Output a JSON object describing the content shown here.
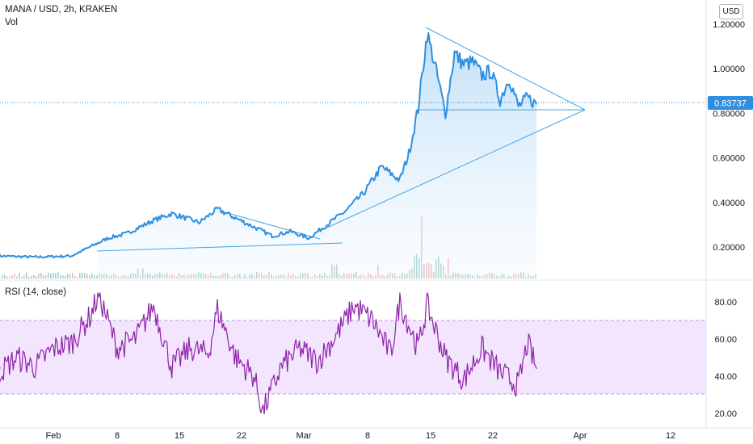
{
  "header": {
    "symbol_line": "MANA / USD, 2h, KRAKEN",
    "volume_label": "Vol",
    "currency_button": "USD"
  },
  "rsi": {
    "label": "RSI (14, close)"
  },
  "last_price": "0.83737",
  "colors": {
    "price_line": "#2e8fe0",
    "price_fill_top": "#bcdcf6",
    "trendline": "#42a5e6",
    "rsi_line": "#8e24aa",
    "rsi_band": "#f3e5fd",
    "vol_up": "#9fd2cc",
    "vol_down": "#f3b8b5",
    "last_price_badge": "#2e8fe0"
  },
  "chart_data": [
    {
      "type": "line",
      "title": "MANA / USD, 2h, KRAKEN",
      "x_tick_labels": [
        "Feb",
        "8",
        "15",
        "22",
        "Mar",
        "8",
        "15",
        "22",
        "Apr",
        "12"
      ],
      "y_tick_labels": [
        "1.20000",
        "1.00000",
        "0.80000",
        "0.60000",
        "0.40000",
        "0.20000"
      ],
      "ylim": [
        0.04,
        1.25
      ],
      "series": [
        {
          "values_description_free": true,
          "x": [
            "Jan 26",
            "Jan 30",
            "Feb 3",
            "Feb 5",
            "Feb 7",
            "Feb 9",
            "Feb 12",
            "Feb 14",
            "Feb 17",
            "Feb 19",
            "Feb 21",
            "Feb 23",
            "Feb 25",
            "Feb 27",
            "Mar 1",
            "Mar 3",
            "Mar 5",
            "Mar 7",
            "Mar 9",
            "Mar 11",
            "Mar 12",
            "Mar 13",
            "Mar 14",
            "Mar 15",
            "Mar 16",
            "Mar 17",
            "Mar 18",
            "Mar 19",
            "Mar 20",
            "Mar 21",
            "Mar 22",
            "Mar 23",
            "Mar 24",
            "Mar 25",
            "Mar 26"
          ],
          "y": [
            0.16,
            0.155,
            0.16,
            0.2,
            0.24,
            0.26,
            0.32,
            0.35,
            0.31,
            0.37,
            0.33,
            0.29,
            0.25,
            0.27,
            0.24,
            0.3,
            0.36,
            0.44,
            0.56,
            0.5,
            0.62,
            0.82,
            1.16,
            0.99,
            0.8,
            1.07,
            1.02,
            1.03,
            0.97,
            0.99,
            0.86,
            0.96,
            0.83,
            0.87,
            0.84
          ]
        }
      ],
      "last_value": 0.83737
    },
    {
      "type": "line",
      "title": "RSI (14, close)",
      "y_tick_labels": [
        "80.00",
        "60.00",
        "40.00",
        "20.00"
      ],
      "ylim": [
        17,
        87
      ],
      "band": [
        30,
        70
      ],
      "series": [
        {
          "x": [
            "Jan 26",
            "Jan 28",
            "Jan 30",
            "Feb 1",
            "Feb 3",
            "Feb 5",
            "Feb 6",
            "Feb 8",
            "Feb 10",
            "Feb 12",
            "Feb 14",
            "Feb 16",
            "Feb 18",
            "Feb 19",
            "Feb 21",
            "Feb 23",
            "Feb 24",
            "Feb 26",
            "Feb 28",
            "Mar 2",
            "Mar 4",
            "Mar 6",
            "Mar 8",
            "Mar 10",
            "Mar 11",
            "Mar 13",
            "Mar 14",
            "Mar 16",
            "Mar 18",
            "Mar 20",
            "Mar 22",
            "Mar 24",
            "Mar 25",
            "Mar 26"
          ],
          "y": [
            42,
            50,
            45,
            55,
            58,
            72,
            84,
            55,
            60,
            78,
            45,
            55,
            52,
            76,
            50,
            40,
            21,
            45,
            55,
            48,
            62,
            78,
            70,
            52,
            80,
            55,
            78,
            50,
            38,
            55,
            42,
            35,
            58,
            44
          ]
        }
      ]
    }
  ]
}
